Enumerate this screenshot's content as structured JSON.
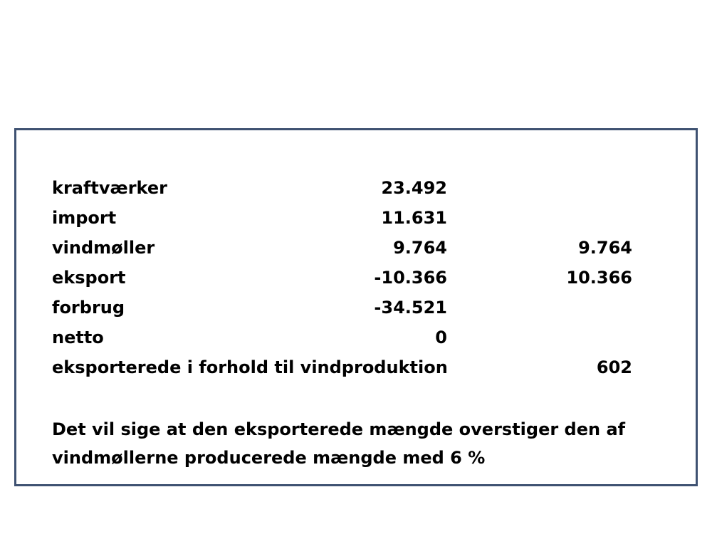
{
  "rows": [
    {
      "label": "kraftværker",
      "value1": "23.492",
      "value2": ""
    },
    {
      "label": "import",
      "value1": "11.631",
      "value2": ""
    },
    {
      "label": "vindmøller",
      "value1": "9.764",
      "value2": "9.764"
    },
    {
      "label": "eksport",
      "value1": "-10.366",
      "value2": "10.366"
    },
    {
      "label": "forbrug",
      "value1": "-34.521",
      "value2": ""
    },
    {
      "label": "netto",
      "value1": "0",
      "value2": ""
    },
    {
      "label": "eksporterede i forhold til vindproduktion",
      "value1": "",
      "value2": "602"
    }
  ],
  "conclusion": {
    "line1": "Det vil sige at den eksporterede mængde overstiger den af",
    "line2": "vindmøllerne producerede mængde med 6 %"
  },
  "colors": {
    "border": "#3f5272",
    "text": "#000000",
    "background": "#ffffff"
  }
}
